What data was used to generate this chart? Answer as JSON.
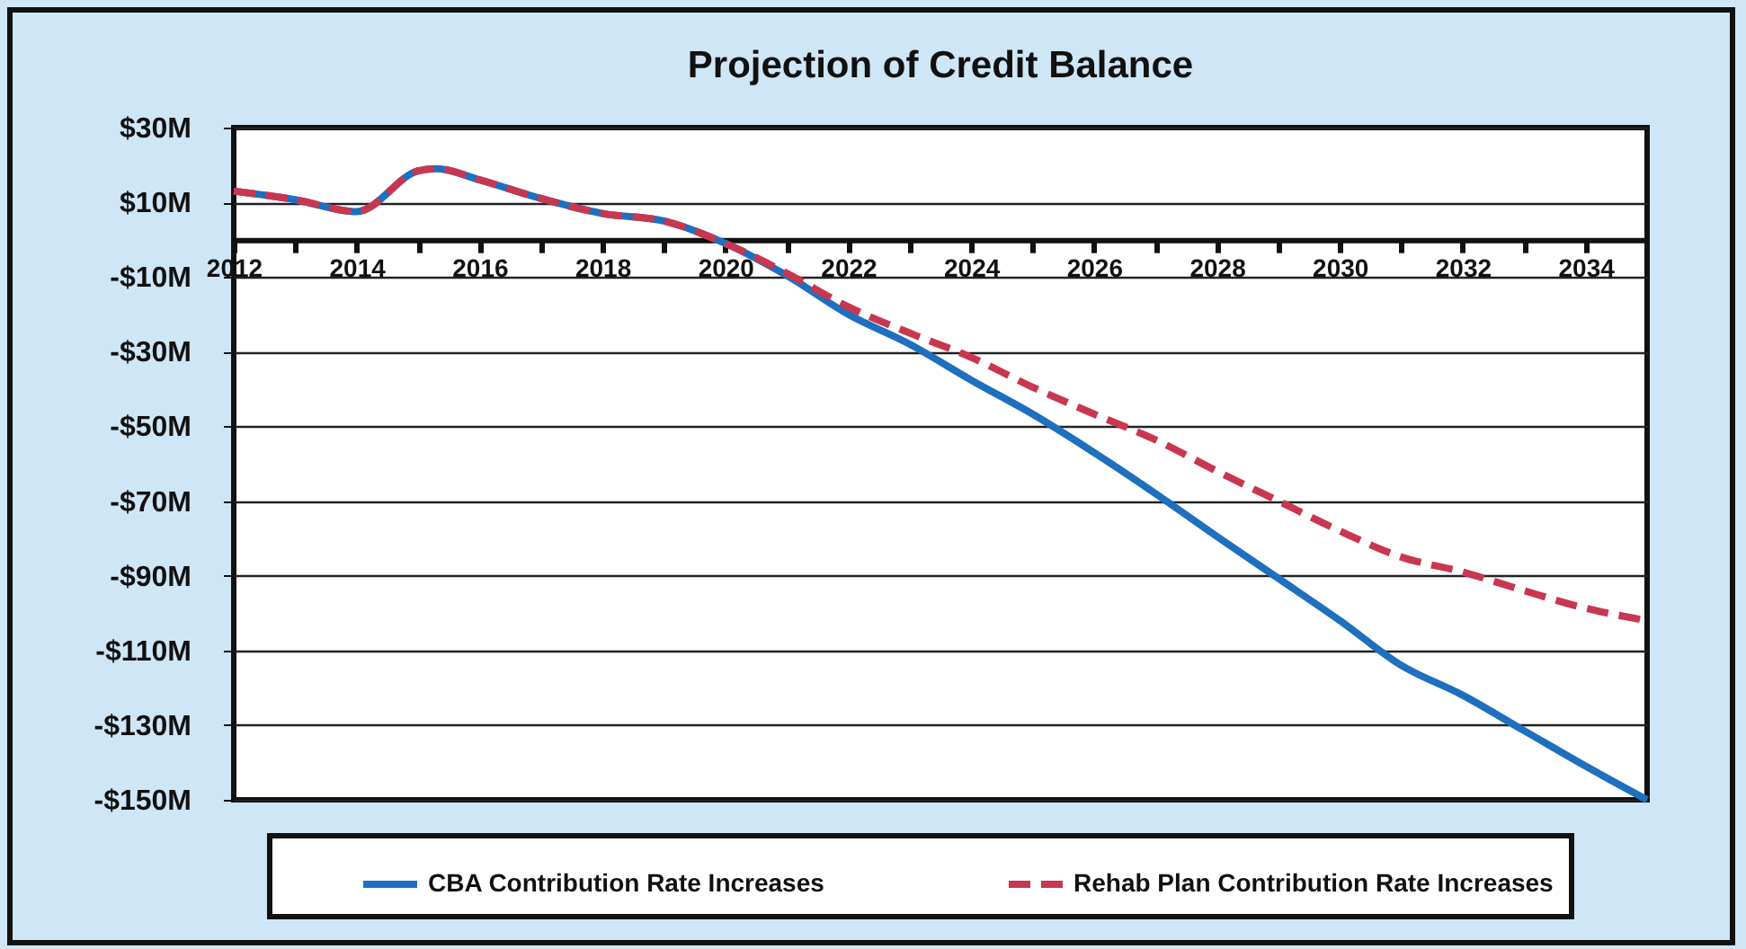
{
  "chart_data": {
    "type": "line",
    "title": "Projection of Credit Balance",
    "x": [
      2012,
      2013,
      2014,
      2015,
      2015.3,
      2016,
      2017,
      2018,
      2019,
      2020,
      2021,
      2022,
      2023,
      2024,
      2025,
      2026,
      2027,
      2028,
      2029,
      2030,
      2031,
      2032,
      2033,
      2034,
      2035
    ],
    "series": [
      {
        "name": "CBA Contribution Rate Increases",
        "color": "#1f6fbf",
        "line_style": "solid",
        "values": [
          13,
          10.7,
          7.5,
          18.4,
          19,
          16,
          11,
          7,
          5,
          -1,
          -9.6,
          -20,
          -28,
          -37.6,
          -46.7,
          -57,
          -68,
          -79.5,
          -90.7,
          -102,
          -114,
          -122,
          -131.5,
          -141,
          -150
        ]
      },
      {
        "name": "Rehab Plan Contribution Rate Increases",
        "color": "#c8374f",
        "line_style": "dashed",
        "values": [
          13,
          10.7,
          7.5,
          18.4,
          19,
          16,
          11,
          7,
          5,
          -1,
          -9,
          -18,
          -25,
          -31.5,
          -39.5,
          -46.7,
          -53.6,
          -62,
          -70,
          -78,
          -85,
          -89,
          -94,
          -98.7,
          -102
        ]
      }
    ],
    "xlim": [
      2012,
      2035
    ],
    "xticks": [
      2012,
      {
        "value": 2013,
        "label": null
      },
      2014,
      {
        "value": 2015,
        "label": null
      },
      2016,
      {
        "value": 2017,
        "label": null
      },
      2018,
      {
        "value": 2019,
        "label": null
      },
      2020,
      {
        "value": 2021,
        "label": null
      },
      2022,
      {
        "value": 2023,
        "label": null
      },
      2024,
      {
        "value": 2025,
        "label": null
      },
      2026,
      {
        "value": 2027,
        "label": null
      },
      2028,
      {
        "value": 2029,
        "label": null
      },
      2030,
      {
        "value": 2031,
        "label": null
      },
      2032,
      {
        "value": 2033,
        "label": null
      },
      2034
    ],
    "ylim": [
      -150,
      30
    ],
    "yticks": [
      {
        "value": 30,
        "label": "$30M"
      },
      {
        "value": 10,
        "label": "$10M"
      },
      {
        "value": -10,
        "label": "-$10M"
      },
      {
        "value": -30,
        "label": "-$30M"
      },
      {
        "value": -50,
        "label": "-$50M"
      },
      {
        "value": -70,
        "label": "-$70M"
      },
      {
        "value": -90,
        "label": "-$90M"
      },
      {
        "value": -110,
        "label": "-$110M"
      },
      {
        "value": -130,
        "label": "-$130M"
      },
      {
        "value": -150,
        "label": "-$150M"
      }
    ],
    "grid": "y",
    "legend": "bottom",
    "marker": "none"
  }
}
